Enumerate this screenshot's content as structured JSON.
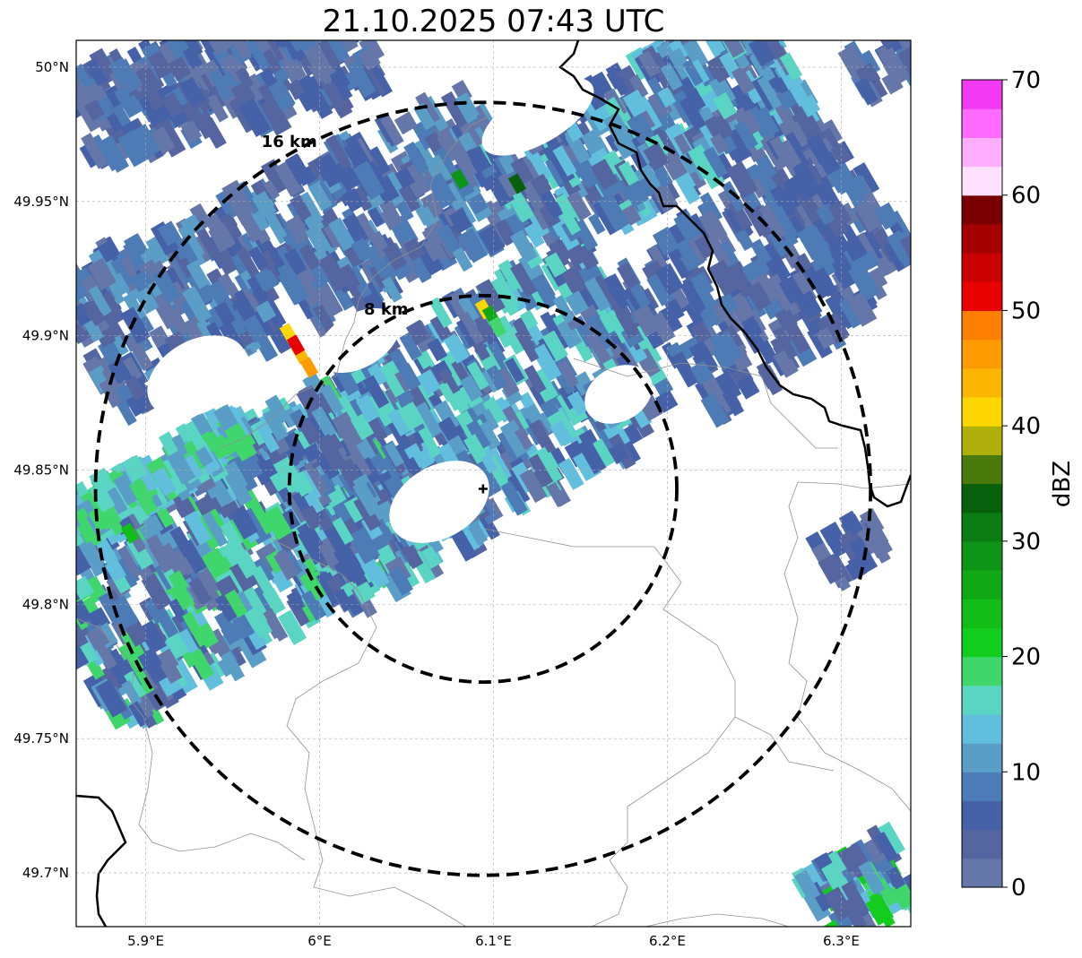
{
  "title": "21.10.2025 07:43 UTC",
  "map": {
    "lon_range": [
      5.86,
      6.34
    ],
    "lat_range": [
      49.68,
      50.01
    ],
    "lon_ticks": [
      {
        "value": 5.9,
        "label": "5.9°E"
      },
      {
        "value": 6.0,
        "label": "6°E"
      },
      {
        "value": 6.1,
        "label": "6.1°E"
      },
      {
        "value": 6.2,
        "label": "6.2°E"
      },
      {
        "value": 6.3,
        "label": "6.3°E"
      }
    ],
    "lat_ticks": [
      {
        "value": 50.0,
        "label": "50°N"
      },
      {
        "value": 49.95,
        "label": "49.95°N"
      },
      {
        "value": 49.9,
        "label": "49.9°N"
      },
      {
        "value": 49.85,
        "label": "49.85°N"
      },
      {
        "value": 49.8,
        "label": "49.8°N"
      },
      {
        "value": 49.75,
        "label": "49.75°N"
      },
      {
        "value": 49.7,
        "label": "49.7°N"
      }
    ],
    "grid": true,
    "radar_site": {
      "lon": 6.094,
      "lat": 49.843
    },
    "range_rings": [
      {
        "radius_km": 8,
        "label": "8 km"
      },
      {
        "radius_km": 16,
        "label": "16 km"
      }
    ]
  },
  "colorbar": {
    "label": "dBZ",
    "min": 0,
    "max": 70,
    "ticks": [
      {
        "value": 0,
        "label": "0"
      },
      {
        "value": 10,
        "label": "10"
      },
      {
        "value": 20,
        "label": "20"
      },
      {
        "value": 30,
        "label": "30"
      },
      {
        "value": 40,
        "label": "40"
      },
      {
        "value": 50,
        "label": "50"
      },
      {
        "value": 60,
        "label": "60"
      },
      {
        "value": 70,
        "label": "70"
      }
    ],
    "colors": [
      "#6577a8",
      "#5465a0",
      "#4561a8",
      "#4d7bb5",
      "#5a9ec8",
      "#62bedd",
      "#5bd5c3",
      "#3fd76c",
      "#12cd1e",
      "#13bd17",
      "#10a814",
      "#0e9416",
      "#0b7d13",
      "#085f0c",
      "#4a7a0c",
      "#b0b00a",
      "#fed700",
      "#fdb600",
      "#fe9b00",
      "#ff7f00",
      "#e90000",
      "#cb0000",
      "#a40000",
      "#7a0000",
      "#ffe0fe",
      "#ffadff",
      "#ff6aff",
      "#f23af2"
    ]
  }
}
